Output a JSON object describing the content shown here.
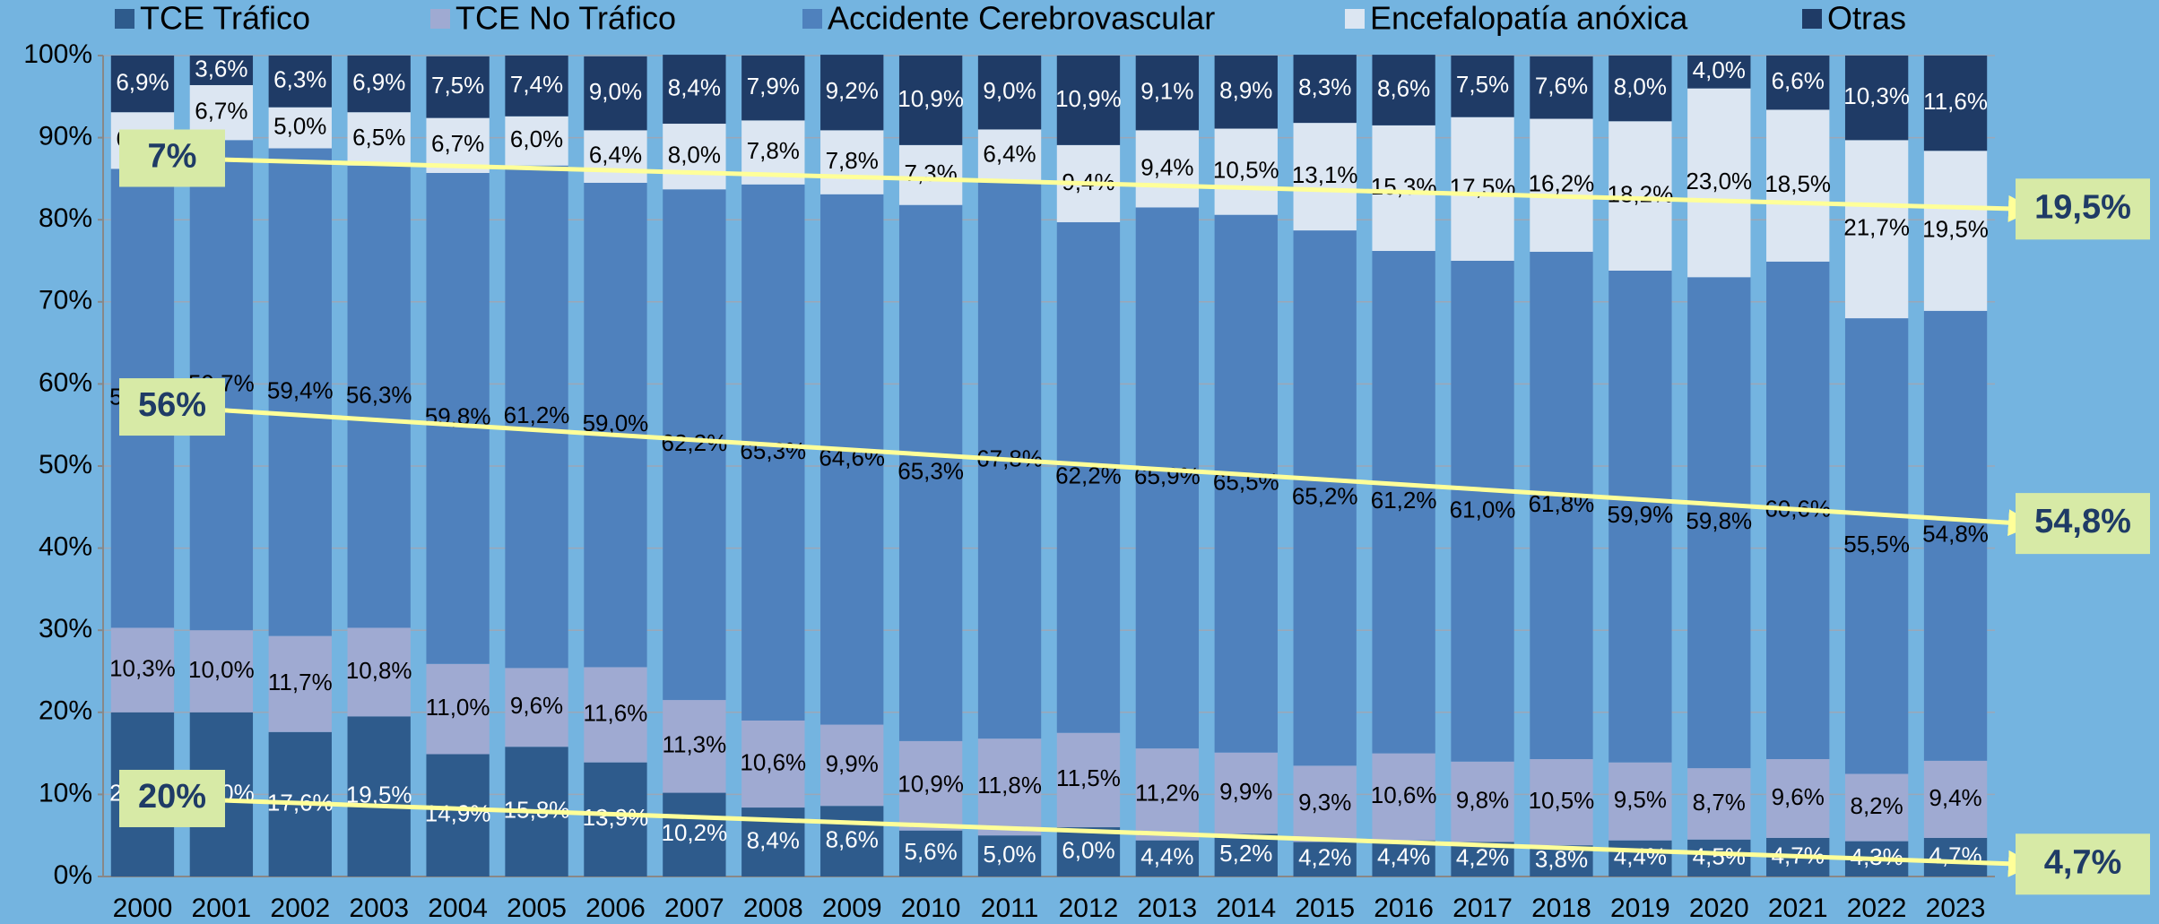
{
  "chart_data": {
    "type": "stacked_bar",
    "categories": [
      "2000",
      "2001",
      "2002",
      "2003",
      "2004",
      "2005",
      "2006",
      "2007",
      "2008",
      "2009",
      "2010",
      "2011",
      "2012",
      "2013",
      "2014",
      "2015",
      "2016",
      "2017",
      "2018",
      "2019",
      "2020",
      "2021",
      "2022",
      "2023"
    ],
    "series": [
      {
        "name": "TCE Tráfico",
        "color": "#2e5b8c",
        "text_color": "#ffffff",
        "values": [
          20.0,
          20.0,
          17.6,
          19.5,
          14.9,
          15.8,
          13.9,
          10.2,
          8.4,
          8.6,
          5.6,
          5.0,
          6.0,
          4.4,
          5.2,
          4.2,
          4.4,
          4.2,
          3.8,
          4.4,
          4.5,
          4.7,
          4.3,
          4.7
        ],
        "value_labels": [
          "20,0%",
          "20,0%",
          "17,6%",
          "19,5%",
          "14,9%",
          "15,8%",
          "13,9%",
          "10,2%",
          "8,4%",
          "8,6%",
          "5,6%",
          "5,0%",
          "6,0%",
          "4,4%",
          "5,2%",
          "4,2%",
          "4,4%",
          "4,2%",
          "3,8%",
          "4,4%",
          "4,5%",
          "4,7%",
          "4,3%",
          "4,7%"
        ]
      },
      {
        "name": "TCE No Tráfico",
        "color": "#9faad2",
        "text_color": "#000000",
        "values": [
          10.3,
          10.0,
          11.7,
          10.8,
          11.0,
          9.6,
          11.6,
          11.3,
          10.6,
          9.9,
          10.9,
          11.8,
          11.5,
          11.2,
          9.9,
          9.3,
          10.6,
          9.8,
          10.5,
          9.5,
          8.7,
          9.6,
          8.2,
          9.4
        ],
        "value_labels": [
          "10,3%",
          "10,0%",
          "11,7%",
          "10,8%",
          "11,0%",
          "9,6%",
          "11,6%",
          "11,3%",
          "10,6%",
          "9,9%",
          "10,9%",
          "11,8%",
          "11,5%",
          "11,2%",
          "9,9%",
          "9,3%",
          "10,6%",
          "9,8%",
          "10,5%",
          "9,5%",
          "8,7%",
          "9,6%",
          "8,2%",
          "9,4%"
        ]
      },
      {
        "name": "Accidente Cerebrovascular",
        "color": "#4f81bd",
        "text_color": "#000000",
        "values": [
          55.9,
          59.7,
          59.4,
          56.3,
          59.8,
          61.2,
          59.0,
          62.2,
          65.3,
          64.6,
          65.3,
          67.8,
          62.2,
          65.9,
          65.5,
          65.2,
          61.2,
          61.0,
          61.8,
          59.9,
          59.8,
          60.6,
          55.5,
          54.8
        ],
        "value_labels": [
          "55,9%",
          "59,7%",
          "59,4%",
          "56,3%",
          "59,8%",
          "61,2%",
          "59,0%",
          "62,2%",
          "65,3%",
          "64,6%",
          "65,3%",
          "67,8%",
          "62,2%",
          "65,9%",
          "65,5%",
          "65,2%",
          "61,2%",
          "61,0%",
          "61,8%",
          "59,9%",
          "59,8%",
          "60,6%",
          "55,5%",
          "54,8%"
        ]
      },
      {
        "name": "Encefalopatía anóxica",
        "color": "#dce6f2",
        "text_color": "#000000",
        "values": [
          6.9,
          6.7,
          5.0,
          6.5,
          6.7,
          6.0,
          6.4,
          8.0,
          7.8,
          7.8,
          7.3,
          6.4,
          9.4,
          9.4,
          10.5,
          13.1,
          15.3,
          17.5,
          16.2,
          18.2,
          23.0,
          18.5,
          21.7,
          19.5
        ],
        "value_labels": [
          "6,9%",
          "6,7%",
          "5,0%",
          "6,5%",
          "6,7%",
          "6,0%",
          "6,4%",
          "8,0%",
          "7,8%",
          "7,8%",
          "7,3%",
          "6,4%",
          "9,4%",
          "9,4%",
          "10,5%",
          "13,1%",
          "15,3%",
          "17,5%",
          "16,2%",
          "18,2%",
          "23,0%",
          "18,5%",
          "21,7%",
          "19,5%"
        ]
      },
      {
        "name": "Otras",
        "color": "#1f3b66",
        "text_color": "#ffffff",
        "values": [
          6.9,
          3.6,
          6.3,
          6.9,
          7.5,
          7.4,
          9.0,
          8.4,
          7.9,
          9.2,
          10.9,
          9.0,
          10.9,
          9.1,
          8.9,
          8.3,
          8.6,
          7.5,
          7.6,
          8.0,
          4.0,
          6.6,
          10.3,
          11.6
        ],
        "value_labels": [
          "6,9%",
          "3,6%",
          "6,3%",
          "6,9%",
          "7,5%",
          "7,4%",
          "9,0%",
          "8,4%",
          "7,9%",
          "9,2%",
          "10,9%",
          "9,0%",
          "10,9%",
          "9,1%",
          "8,9%",
          "8,3%",
          "8,6%",
          "7,5%",
          "7,6%",
          "8,0%",
          "4,0%",
          "6,6%",
          "10,3%",
          "11,6%"
        ]
      }
    ],
    "ylim": [
      0,
      100
    ],
    "yticks": [
      {
        "value": 0,
        "label": "0%"
      },
      {
        "value": 10,
        "label": "10%"
      },
      {
        "value": 20,
        "label": "20%"
      },
      {
        "value": 30,
        "label": "30%"
      },
      {
        "value": 40,
        "label": "40%"
      },
      {
        "value": 50,
        "label": "50%"
      },
      {
        "value": 60,
        "label": "60%"
      },
      {
        "value": 70,
        "label": "70%"
      },
      {
        "value": 80,
        "label": "80%"
      },
      {
        "value": 90,
        "label": "90%"
      },
      {
        "value": 100,
        "label": "100%"
      }
    ],
    "grid": true,
    "legend": "top",
    "annotations": [
      {
        "start": "7%",
        "end": "19,5%"
      },
      {
        "start": "56%",
        "end": "54,8%"
      },
      {
        "start": "20%",
        "end": "4,7%"
      }
    ]
  }
}
